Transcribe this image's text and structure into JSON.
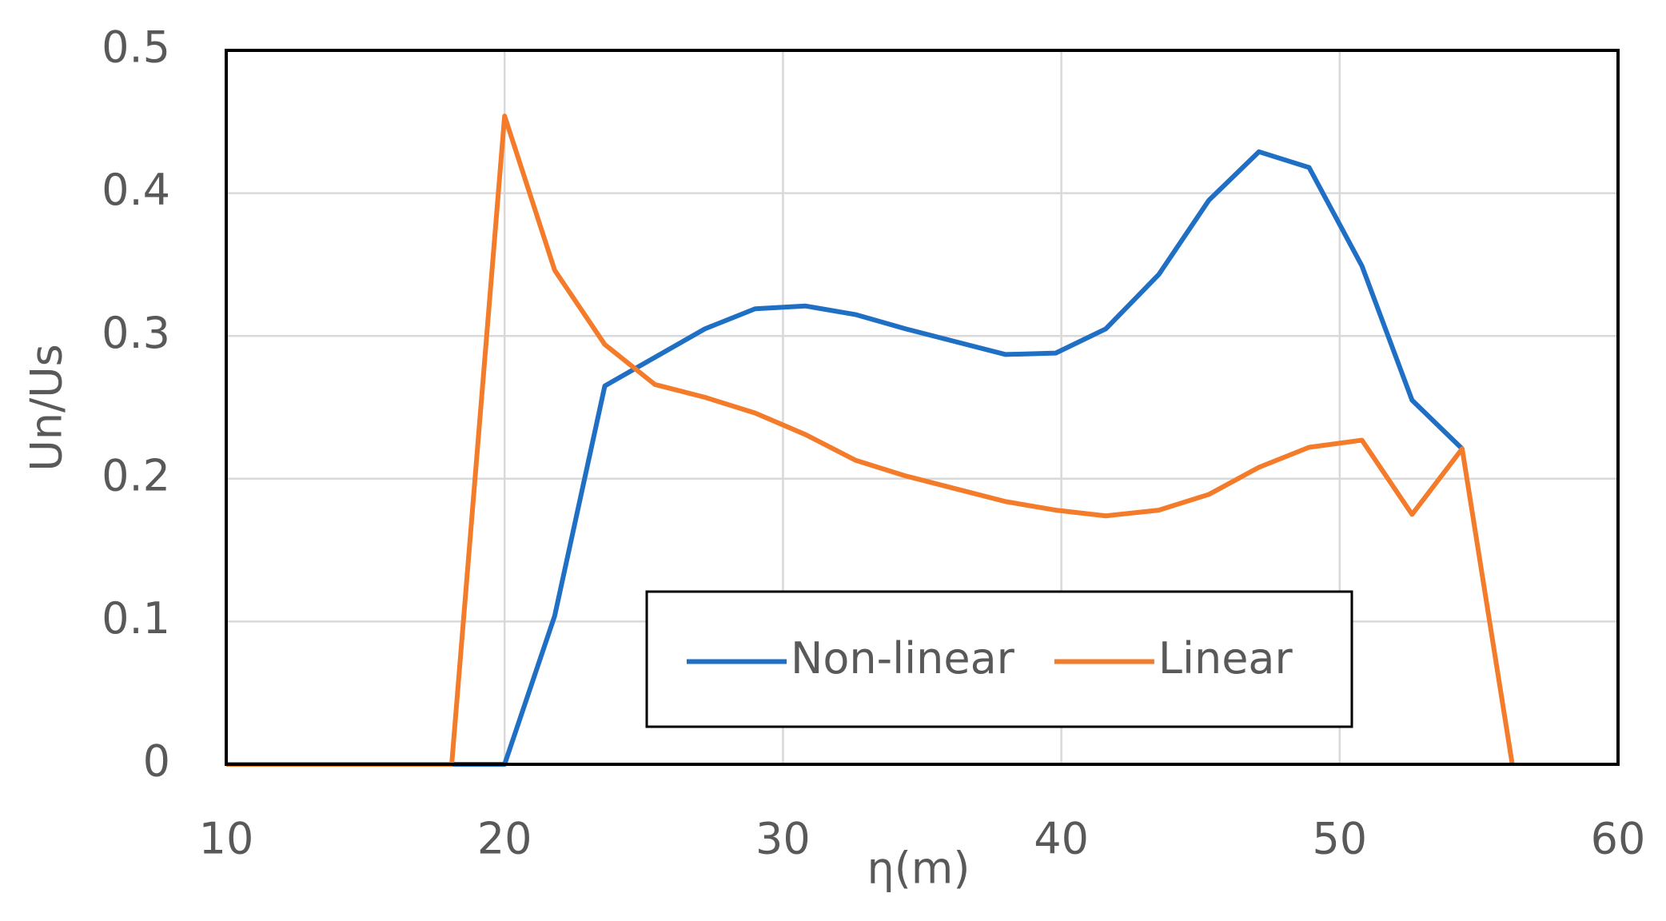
{
  "chart_data": {
    "type": "line",
    "x_label": "η(m)",
    "y_label": "Un/Us",
    "xlim": [
      10,
      60
    ],
    "xticks": [
      10,
      20,
      30,
      40,
      50,
      60
    ],
    "ylim": [
      0,
      0.5
    ],
    "yticks": [
      0,
      0.1,
      0.2,
      0.3,
      0.4,
      0.5
    ],
    "grid": true,
    "legend": "bottom-center",
    "series": [
      {
        "name": "Non-linear",
        "color": "#1f6fc5",
        "x": [
          10,
          20,
          21.8,
          23.6,
          27.2,
          29.0,
          30.8,
          32.6,
          34.4,
          36.2,
          38.0,
          39.8,
          41.6,
          43.5,
          45.3,
          47.1,
          48.9,
          50.8,
          52.6,
          54.4
        ],
        "values": [
          0,
          0,
          0.104,
          0.265,
          0.305,
          0.319,
          0.321,
          0.315,
          0.305,
          0.296,
          0.287,
          0.288,
          0.305,
          0.343,
          0.395,
          0.429,
          0.418,
          0.349,
          0.255,
          0.221
        ]
      },
      {
        "name": "Linear",
        "color": "#f47b2a",
        "x": [
          10,
          18.1,
          20,
          21.8,
          23.6,
          25.4,
          27.2,
          29.0,
          30.8,
          32.6,
          34.4,
          36.2,
          38.0,
          39.8,
          41.6,
          43.5,
          45.3,
          47.1,
          48.9,
          50.8,
          52.6,
          54.4,
          56.2
        ],
        "values": [
          0,
          0,
          0.454,
          0.346,
          0.294,
          0.266,
          0.257,
          0.246,
          0.231,
          0.213,
          0.202,
          0.193,
          0.184,
          0.178,
          0.174,
          0.178,
          0.189,
          0.208,
          0.222,
          0.227,
          0.175,
          0.221,
          0
        ]
      }
    ]
  }
}
